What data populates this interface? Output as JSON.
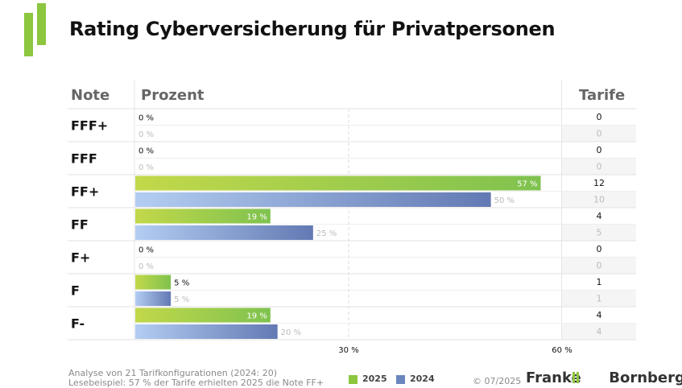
{
  "title": "Rating Cyberversicherung für Privatpersonen",
  "headers": {
    "note": "Note",
    "prozent": "Prozent",
    "tarife": "Tarife"
  },
  "chart_data": {
    "type": "bar",
    "orientation": "horizontal",
    "title": "Rating Cyberversicherung für Privatpersonen",
    "categories": [
      "FFF+",
      "FFF",
      "FF+",
      "FF",
      "F+",
      "F",
      "F-"
    ],
    "series": [
      {
        "name": "2025",
        "values": [
          0,
          0,
          57,
          19,
          0,
          5,
          19
        ],
        "tarife": [
          0,
          0,
          12,
          4,
          0,
          1,
          4
        ],
        "color": "#8dc63f"
      },
      {
        "name": "2024",
        "values": [
          0,
          0,
          50,
          25,
          0,
          5,
          20
        ],
        "tarife": [
          0,
          0,
          10,
          5,
          0,
          1,
          4
        ],
        "color": "#6b86bf"
      }
    ],
    "value_suffix": " %",
    "xlim": [
      0,
      60
    ],
    "xticks": [
      30,
      60
    ],
    "xtick_labels": [
      "30 %",
      "60 %"
    ]
  },
  "footer": {
    "analysis": "Analyse von 21 Tarifkonfigurationen (2024: 20)",
    "example": "Lesebeispiel: 57 % der Tarife erhielten 2025 die Note FF+"
  },
  "legend": [
    {
      "label": "2025",
      "color": "#8dc63f"
    },
    {
      "label": "2024",
      "color": "#6b86bf"
    }
  ],
  "copyright": "© 07/2025",
  "brand": {
    "left": "Franke",
    "right": "Bornberg"
  }
}
